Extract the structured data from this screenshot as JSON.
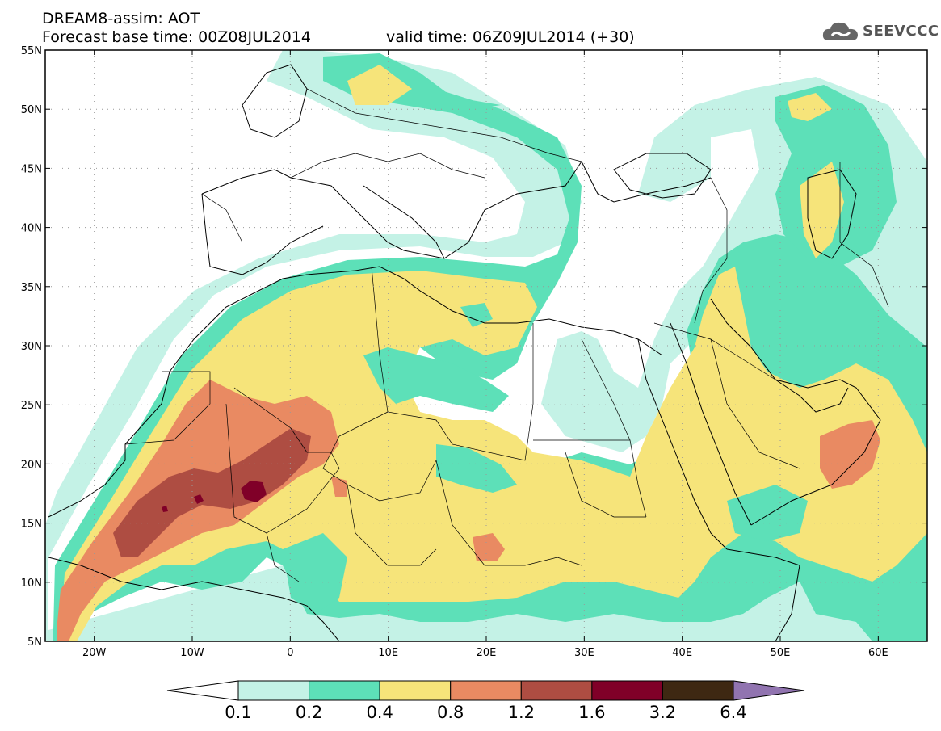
{
  "header": {
    "line1": "DREAM8-assim: AOT",
    "line2": "Forecast base time: 00Z08JUL2014",
    "valid_time": "valid time: 06Z09JUL2014 (+30)"
  },
  "logo": {
    "text": "SEEVCCC",
    "icon": "cloud-icon"
  },
  "map": {
    "lon_labels": [
      "20W",
      "10W",
      "0",
      "10E",
      "20E",
      "30E",
      "40E",
      "50E",
      "60E"
    ],
    "lon_values": [
      -20,
      -10,
      0,
      10,
      20,
      30,
      40,
      50,
      60
    ],
    "lat_labels": [
      "55N",
      "50N",
      "45N",
      "40N",
      "35N",
      "30N",
      "25N",
      "20N",
      "15N",
      "10N",
      "5N"
    ],
    "lat_values": [
      55,
      50,
      45,
      40,
      35,
      30,
      25,
      20,
      15,
      10,
      5
    ],
    "lon_range": [
      -25,
      65
    ],
    "lat_range": [
      5,
      55
    ],
    "grid": "dotted"
  },
  "colorbar": {
    "labels": [
      "0.1",
      "0.2",
      "0.4",
      "0.8",
      "1.2",
      "1.6",
      "3.2",
      "6.4"
    ],
    "colors": [
      "#ffffff",
      "#c4f2e6",
      "#5de0b8",
      "#f6e47a",
      "#e98a62",
      "#ae4d42",
      "#800028",
      "#3e2812",
      "#9174b0"
    ]
  }
}
